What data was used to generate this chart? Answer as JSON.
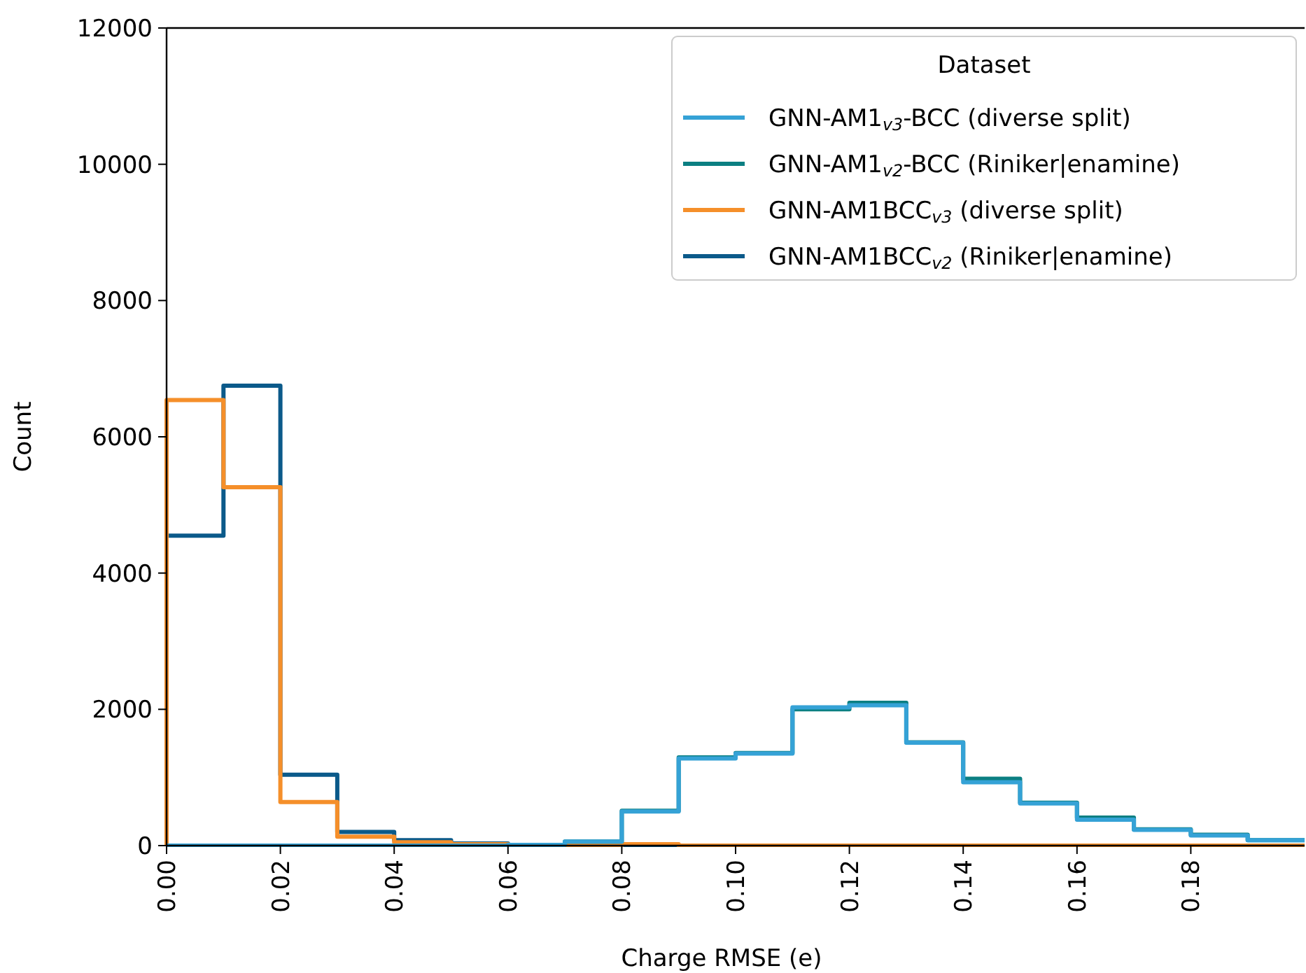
{
  "chart_data": {
    "type": "histogram",
    "xlabel": "Charge RMSE (e)",
    "ylabel": "Count",
    "legend_title": "Dataset",
    "legend": "top right",
    "grid": false,
    "bins": [
      0,
      0.01,
      0.02,
      0.03,
      0.04,
      0.05,
      0.06,
      0.07,
      0.08,
      0.09,
      0.1,
      0.11,
      0.12,
      0.13,
      0.14,
      0.15,
      0.16,
      0.17,
      0.18,
      0.19,
      0.2
    ],
    "xlim": [
      0,
      0.2
    ],
    "xticks": [
      {
        "value": 0,
        "label": "0.00"
      },
      {
        "value": 0.02,
        "label": "0.02"
      },
      {
        "value": 0.04,
        "label": "0.04"
      },
      {
        "value": 0.06,
        "label": "0.06"
      },
      {
        "value": 0.08,
        "label": "0.08"
      },
      {
        "value": 0.1,
        "label": "0.10"
      },
      {
        "value": 0.12,
        "label": "0.12"
      },
      {
        "value": 0.14,
        "label": "0.14"
      },
      {
        "value": 0.16,
        "label": "0.16"
      },
      {
        "value": 0.18,
        "label": "0.18"
      }
    ],
    "ylim": [
      0,
      12000
    ],
    "yticks": [
      0,
      2000,
      4000,
      6000,
      8000,
      10000,
      12000
    ],
    "series": [
      {
        "name": "GNN-AM1$_{v3}$-BCC (diverse split)",
        "color": "#35a2d6",
        "values": [
          0,
          0,
          0,
          0,
          0,
          0,
          10,
          60,
          500,
          1280,
          1350,
          2030,
          2060,
          1510,
          930,
          620,
          380,
          230,
          150,
          80
        ]
      },
      {
        "name": "GNN-AM1$_{v2}$-BCC (Riniker|enamine)",
        "color": "#0b7f82",
        "values": [
          0,
          0,
          0,
          0,
          0,
          0,
          10,
          60,
          510,
          1295,
          1360,
          2000,
          2095,
          1515,
          980,
          630,
          410,
          240,
          160,
          80
        ]
      },
      {
        "name": "GNN-AM1BCC$_{v3}$ (diverse split)",
        "color": "#f58f2a",
        "values": [
          6540,
          5260,
          640,
          130,
          50,
          20,
          10,
          5,
          20,
          0,
          0,
          0,
          0,
          0,
          0,
          0,
          0,
          0,
          0,
          0
        ]
      },
      {
        "name": "GNN-AM1BCC$_{v2}$ (Riniker|enamine)",
        "color": "#0b5a8a",
        "values": [
          4550,
          6750,
          1040,
          200,
          80,
          30,
          10,
          0,
          0,
          0,
          0,
          0,
          0,
          0,
          0,
          0,
          0,
          0,
          0,
          0
        ]
      }
    ]
  }
}
